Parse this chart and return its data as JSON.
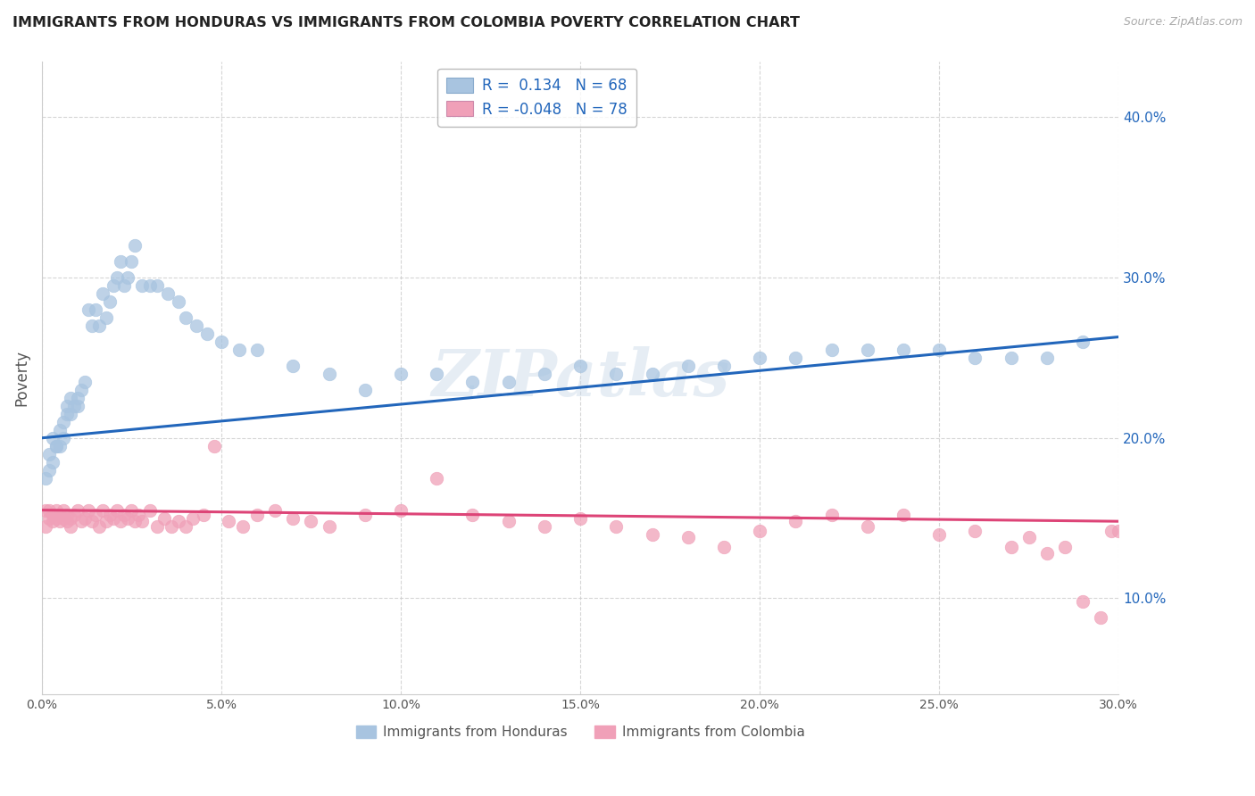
{
  "title": "IMMIGRANTS FROM HONDURAS VS IMMIGRANTS FROM COLOMBIA POVERTY CORRELATION CHART",
  "source": "Source: ZipAtlas.com",
  "ylabel": "Poverty",
  "watermark": "ZIPatlas",
  "xlim": [
    0.0,
    0.3
  ],
  "ylim": [
    0.04,
    0.435
  ],
  "xticks": [
    0.0,
    0.05,
    0.1,
    0.15,
    0.2,
    0.25,
    0.3
  ],
  "yticks": [
    0.1,
    0.2,
    0.3,
    0.4
  ],
  "series": [
    {
      "name": "Immigrants from Honduras",
      "R": 0.134,
      "N": 68,
      "color": "#a8c4e0",
      "line_color": "#2266bb",
      "x": [
        0.001,
        0.002,
        0.002,
        0.003,
        0.003,
        0.004,
        0.004,
        0.005,
        0.005,
        0.006,
        0.006,
        0.007,
        0.007,
        0.008,
        0.008,
        0.009,
        0.01,
        0.01,
        0.011,
        0.012,
        0.013,
        0.014,
        0.015,
        0.016,
        0.017,
        0.018,
        0.019,
        0.02,
        0.021,
        0.022,
        0.023,
        0.024,
        0.025,
        0.026,
        0.028,
        0.03,
        0.032,
        0.035,
        0.038,
        0.04,
        0.043,
        0.046,
        0.05,
        0.055,
        0.06,
        0.07,
        0.08,
        0.09,
        0.1,
        0.11,
        0.12,
        0.13,
        0.14,
        0.15,
        0.16,
        0.17,
        0.18,
        0.19,
        0.2,
        0.21,
        0.22,
        0.23,
        0.24,
        0.25,
        0.26,
        0.27,
        0.28,
        0.29
      ],
      "y": [
        0.175,
        0.18,
        0.19,
        0.185,
        0.2,
        0.195,
        0.195,
        0.195,
        0.205,
        0.2,
        0.21,
        0.215,
        0.22,
        0.215,
        0.225,
        0.22,
        0.22,
        0.225,
        0.23,
        0.235,
        0.28,
        0.27,
        0.28,
        0.27,
        0.29,
        0.275,
        0.285,
        0.295,
        0.3,
        0.31,
        0.295,
        0.3,
        0.31,
        0.32,
        0.295,
        0.295,
        0.295,
        0.29,
        0.285,
        0.275,
        0.27,
        0.265,
        0.26,
        0.255,
        0.255,
        0.245,
        0.24,
        0.23,
        0.24,
        0.24,
        0.235,
        0.235,
        0.24,
        0.245,
        0.24,
        0.24,
        0.245,
        0.245,
        0.25,
        0.25,
        0.255,
        0.255,
        0.255,
        0.255,
        0.25,
        0.25,
        0.25,
        0.26
      ],
      "trend_x": [
        0.0,
        0.3
      ],
      "trend_y": [
        0.2,
        0.263
      ]
    },
    {
      "name": "Immigrants from Colombia",
      "R": -0.048,
      "N": 78,
      "color": "#f0a0b8",
      "line_color": "#dd4477",
      "x": [
        0.001,
        0.001,
        0.002,
        0.002,
        0.003,
        0.003,
        0.004,
        0.004,
        0.005,
        0.005,
        0.006,
        0.006,
        0.007,
        0.007,
        0.008,
        0.008,
        0.009,
        0.01,
        0.011,
        0.012,
        0.013,
        0.014,
        0.015,
        0.016,
        0.017,
        0.018,
        0.019,
        0.02,
        0.021,
        0.022,
        0.023,
        0.024,
        0.025,
        0.026,
        0.027,
        0.028,
        0.03,
        0.032,
        0.034,
        0.036,
        0.038,
        0.04,
        0.042,
        0.045,
        0.048,
        0.052,
        0.056,
        0.06,
        0.065,
        0.07,
        0.075,
        0.08,
        0.09,
        0.1,
        0.11,
        0.12,
        0.13,
        0.14,
        0.15,
        0.16,
        0.17,
        0.18,
        0.19,
        0.2,
        0.21,
        0.22,
        0.23,
        0.24,
        0.25,
        0.26,
        0.27,
        0.275,
        0.28,
        0.285,
        0.29,
        0.295,
        0.298,
        0.3
      ],
      "y": [
        0.155,
        0.145,
        0.15,
        0.155,
        0.148,
        0.152,
        0.15,
        0.155,
        0.152,
        0.148,
        0.15,
        0.155,
        0.148,
        0.152,
        0.15,
        0.145,
        0.152,
        0.155,
        0.148,
        0.15,
        0.155,
        0.148,
        0.152,
        0.145,
        0.155,
        0.148,
        0.152,
        0.15,
        0.155,
        0.148,
        0.152,
        0.15,
        0.155,
        0.148,
        0.152,
        0.148,
        0.155,
        0.145,
        0.15,
        0.145,
        0.148,
        0.145,
        0.15,
        0.152,
        0.195,
        0.148,
        0.145,
        0.152,
        0.155,
        0.15,
        0.148,
        0.145,
        0.152,
        0.155,
        0.175,
        0.152,
        0.148,
        0.145,
        0.15,
        0.145,
        0.14,
        0.138,
        0.132,
        0.142,
        0.148,
        0.152,
        0.145,
        0.152,
        0.14,
        0.142,
        0.132,
        0.138,
        0.128,
        0.132,
        0.098,
        0.088,
        0.142,
        0.142
      ],
      "trend_x": [
        0.0,
        0.3
      ],
      "trend_y": [
        0.155,
        0.148
      ]
    }
  ],
  "legend_R_color": "#2266bb",
  "background_color": "#ffffff",
  "grid_color": "#cccccc"
}
